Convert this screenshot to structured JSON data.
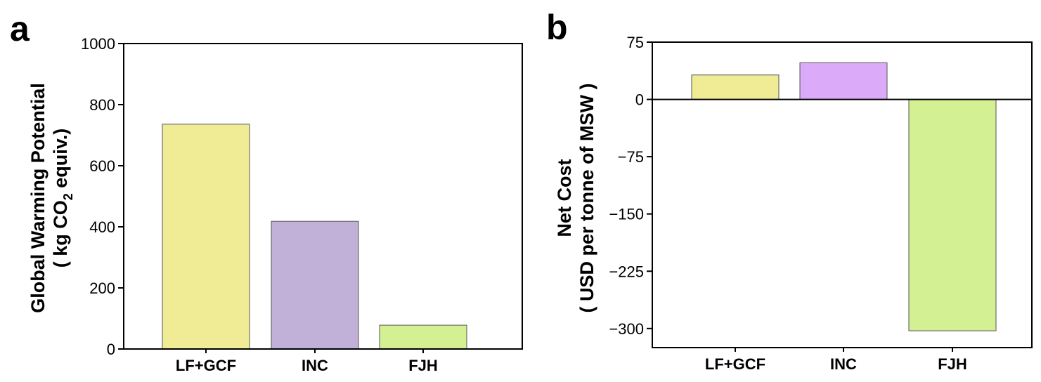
{
  "chart_data": [
    {
      "type": "bar",
      "panel_label": "a",
      "categories": [
        "LF+GCF",
        "INC",
        "FJH"
      ],
      "values": [
        736,
        418,
        78
      ],
      "colors": [
        "#f0ec96",
        "#c1b1d8",
        "#d3f193"
      ],
      "ylabel_line1": "Global Warming Potential",
      "ylabel_line2_pre": "( kg CO",
      "ylabel_line2_sub": "2",
      "ylabel_line2_post": " equiv.)",
      "ylim": [
        0,
        1000
      ],
      "yticks": [
        0,
        200,
        400,
        600,
        800,
        1000
      ],
      "ytick_labels": [
        "0",
        "200",
        "400",
        "600",
        "800",
        "1000"
      ],
      "grid": false
    },
    {
      "type": "bar",
      "panel_label": "b",
      "categories": [
        "LF+GCF",
        "INC",
        "FJH"
      ],
      "values": [
        32,
        48,
        -303
      ],
      "colors": [
        "#f0ec96",
        "#dbabf9",
        "#d3f193"
      ],
      "ylabel_line1": "Net Cost",
      "ylabel_line2": "( USD per tonne of MSW )",
      "ylim": [
        -325,
        75
      ],
      "yticks": [
        -300,
        -225,
        -150,
        -75,
        0,
        75
      ],
      "ytick_labels": [
        "−300",
        "−225",
        "−150",
        "−75",
        "0",
        "75"
      ],
      "zero_line": true,
      "grid": false
    }
  ]
}
